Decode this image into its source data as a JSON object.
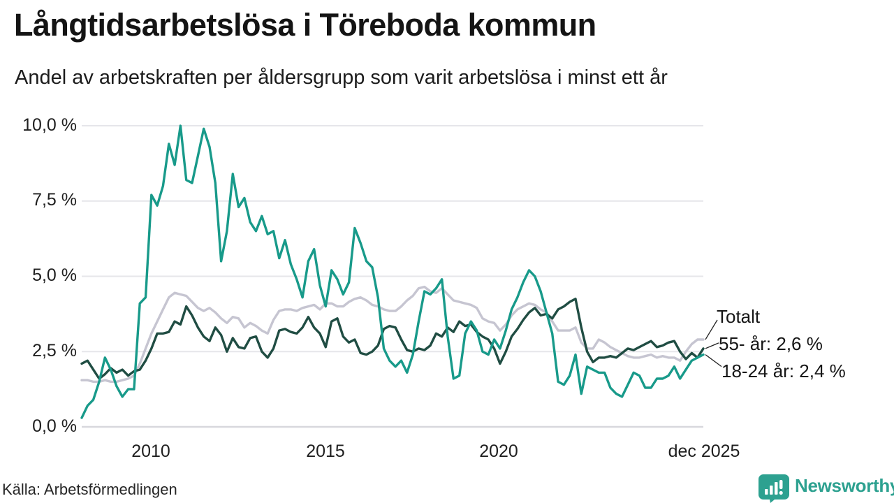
{
  "source": "Källa: Arbetsförmedlingen",
  "brand": {
    "name": "Newsworthy",
    "color": "#2da190"
  },
  "chart_data": {
    "type": "line",
    "title": "Långtidsarbetslösa i Töreboda kommun",
    "subtitle": "Andel av arbetskraften per åldersgrupp som varit arbetslösa i minst ett år",
    "grid": true,
    "legend_position": "right-end-annotations",
    "y_axis": {
      "tick_labels": [
        "10,0 %",
        "7,5 %",
        "5,0 %",
        "2,5 %",
        "0,0 %"
      ],
      "tick_values": [
        10,
        7.5,
        5,
        2.5,
        0
      ],
      "range": [
        0,
        10
      ],
      "unit": "%"
    },
    "x_axis": {
      "start": 2008.0,
      "step_years": 0.166667,
      "points": 108,
      "range": [
        2008.0,
        2025.92
      ],
      "ticks": [
        {
          "label": "2010",
          "year": 2010
        },
        {
          "label": "2015",
          "year": 2015
        },
        {
          "label": "2020",
          "year": 2020
        },
        {
          "label": "dec 2025",
          "year": 2025.92
        }
      ]
    },
    "series": [
      {
        "name": "Totalt",
        "end_label": "Totalt",
        "color": "#c6c5d1",
        "values": [
          1.55,
          1.55,
          1.5,
          1.5,
          1.55,
          1.5,
          1.5,
          1.55,
          1.6,
          1.7,
          2.1,
          2.6,
          3.1,
          3.5,
          3.9,
          4.3,
          4.45,
          4.4,
          4.35,
          4.15,
          3.95,
          3.85,
          3.95,
          3.8,
          3.6,
          3.45,
          3.65,
          3.6,
          3.3,
          3.45,
          3.35,
          3.2,
          3.1,
          3.55,
          3.85,
          3.9,
          3.9,
          3.85,
          3.95,
          4.0,
          4.05,
          3.9,
          4.1,
          4.1,
          4.0,
          4.0,
          4.15,
          4.25,
          4.3,
          4.2,
          4.05,
          4.0,
          3.9,
          3.85,
          3.85,
          4.0,
          4.2,
          4.35,
          4.6,
          4.65,
          4.5,
          4.45,
          4.6,
          4.4,
          4.2,
          4.15,
          4.1,
          4.05,
          3.95,
          3.6,
          3.5,
          3.45,
          3.2,
          3.4,
          3.7,
          3.9,
          4.0,
          4.1,
          4.05,
          3.9,
          3.8,
          3.5,
          3.2,
          3.2,
          3.2,
          3.3,
          2.8,
          2.6,
          2.6,
          2.9,
          2.8,
          2.65,
          2.55,
          2.45,
          2.35,
          2.3,
          2.3,
          2.35,
          2.4,
          2.3,
          2.35,
          2.3,
          2.3,
          2.2,
          2.5,
          2.75,
          2.9,
          2.9
        ]
      },
      {
        "name": "55- år",
        "end_label": "55- år: 2,6 %",
        "color": "#204d43",
        "values": [
          2.1,
          2.2,
          1.9,
          1.6,
          1.75,
          1.95,
          1.8,
          1.9,
          1.7,
          1.85,
          1.9,
          2.2,
          2.6,
          3.1,
          3.1,
          3.15,
          3.5,
          3.4,
          4.0,
          3.7,
          3.3,
          3.0,
          2.85,
          3.3,
          3.05,
          2.5,
          2.95,
          2.65,
          2.6,
          2.95,
          3.0,
          2.5,
          2.3,
          2.6,
          3.2,
          3.25,
          3.15,
          3.1,
          3.3,
          3.65,
          3.3,
          3.1,
          2.65,
          3.5,
          3.6,
          3.0,
          2.8,
          2.9,
          2.45,
          2.4,
          2.5,
          2.7,
          3.25,
          3.35,
          3.3,
          2.9,
          2.55,
          2.5,
          2.6,
          2.55,
          2.7,
          3.1,
          3.0,
          3.3,
          3.15,
          3.5,
          3.35,
          3.4,
          3.15,
          3.0,
          2.9,
          2.6,
          2.1,
          2.5,
          3.0,
          3.25,
          3.55,
          3.8,
          3.95,
          3.7,
          3.75,
          3.6,
          3.9,
          4.0,
          4.15,
          4.25,
          3.3,
          2.5,
          2.15,
          2.3,
          2.3,
          2.35,
          2.3,
          2.45,
          2.6,
          2.55,
          2.65,
          2.75,
          2.85,
          2.65,
          2.7,
          2.8,
          2.85,
          2.5,
          2.25,
          2.45,
          2.3,
          2.6
        ]
      },
      {
        "name": "18-24 år",
        "end_label": "18-24 år: 2,4 %",
        "color": "#189a8a",
        "values": [
          0.3,
          0.7,
          0.9,
          1.5,
          2.3,
          1.9,
          1.35,
          1.0,
          1.25,
          1.25,
          4.1,
          4.3,
          7.7,
          7.35,
          8.0,
          9.4,
          8.7,
          10.0,
          8.2,
          8.1,
          9.0,
          9.9,
          9.3,
          8.1,
          5.5,
          6.5,
          8.4,
          7.3,
          7.6,
          6.8,
          6.5,
          7.0,
          6.4,
          6.5,
          5.6,
          6.2,
          5.4,
          4.9,
          4.3,
          5.5,
          5.9,
          4.7,
          4.0,
          5.2,
          4.9,
          4.4,
          4.8,
          6.6,
          6.1,
          5.5,
          5.3,
          4.3,
          2.6,
          2.2,
          2.0,
          2.2,
          1.8,
          2.4,
          3.5,
          4.5,
          4.4,
          4.6,
          4.9,
          3.0,
          1.6,
          1.7,
          3.1,
          3.5,
          3.2,
          2.5,
          2.4,
          2.9,
          2.6,
          3.2,
          3.9,
          4.3,
          4.8,
          5.2,
          5.0,
          4.5,
          3.8,
          3.1,
          1.5,
          1.4,
          1.7,
          2.4,
          1.1,
          2.0,
          1.9,
          1.8,
          1.8,
          1.3,
          1.1,
          1.0,
          1.4,
          1.8,
          1.7,
          1.3,
          1.3,
          1.6,
          1.6,
          1.7,
          2.0,
          1.6,
          1.9,
          2.2,
          2.3,
          2.4
        ]
      }
    ]
  }
}
